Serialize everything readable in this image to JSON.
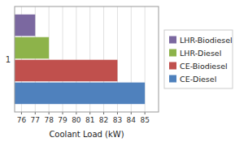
{
  "chart_data": {
    "type": "bar",
    "orientation": "horizontal",
    "categories": [
      "1"
    ],
    "series": [
      {
        "name": "LHR-Biodiesel",
        "color": "#7B68A0",
        "values": [
          77
        ]
      },
      {
        "name": "LHR-Diesel",
        "color": "#8DB34A",
        "values": [
          78
        ]
      },
      {
        "name": "CE-Biodiesel",
        "color": "#C0504D",
        "values": [
          83
        ]
      },
      {
        "name": "CE-Diesel",
        "color": "#4F81BD",
        "values": [
          85
        ]
      }
    ],
    "xlabel": "Coolant Load (kW)",
    "xlim": [
      75.5,
      86.0
    ],
    "xticks": [
      76,
      77,
      78,
      79,
      80,
      81,
      82,
      83,
      84,
      85
    ],
    "grid": true,
    "legend": "right"
  }
}
